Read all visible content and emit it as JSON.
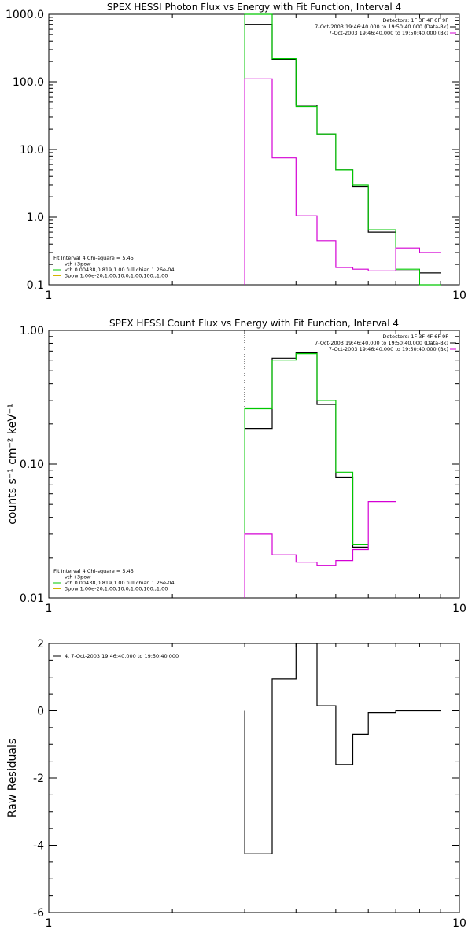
{
  "chart_data": [
    {
      "type": "line",
      "title": "SPEX HESSI Photon Flux vs Energy with Fit Function, Interval 4",
      "xscale": "log",
      "yscale": "log",
      "xlim": [
        1,
        10
      ],
      "ylim": [
        0.1,
        1000
      ],
      "xlabel": "",
      "ylabel": "",
      "x_ticks": [
        "1",
        "10"
      ],
      "y_ticks": [
        "0.1",
        "1.0",
        "10.0",
        "100.0",
        "1000.0"
      ],
      "y_tick_values": [
        0.1,
        1,
        10,
        100,
        1000
      ],
      "dotted_vline_x": 3,
      "info_lines": [
        "Detectors: 1F 3F 4F 6F 9F",
        "7-Oct-2003 19:46:40.000 to 19:50:40.000 (Data-Bk)",
        "7-Oct-2003 19:46:40.000 to 19:50:40.000 (Bk)"
      ],
      "info_line_colors": [
        "#000000",
        "#000000",
        "#d400d4"
      ],
      "legend_lines": [
        "Fit Interval  4    Chi-square = 5.45",
        "vth+3pow",
        "vth 0.00438,0.819,1.00   full chian 1.26e-04",
        "3pow 1.00e-20,1.00,10.0,1.00,100.,1.00"
      ],
      "legend_colors": [
        "#000000",
        "#d40000",
        "#00c800",
        "#d4b400"
      ],
      "bin_edges": [
        3.0,
        3.5,
        4.0,
        4.5,
        5.0,
        5.5,
        6.0,
        7.0,
        8.0,
        9.0,
        10.0
      ],
      "series": [
        {
          "name": "Data-Bk",
          "color": "#000000",
          "values": [
            700,
            215,
            45,
            17,
            5.0,
            2.8,
            0.6,
            0.16,
            0.15
          ]
        },
        {
          "name": "Fit",
          "color": "#00c800",
          "values": [
            1000,
            220,
            43,
            17,
            5.0,
            3.0,
            0.65,
            0.17,
            0.1
          ]
        },
        {
          "name": "Bk",
          "color": "#d400d4",
          "values": [
            110,
            7.5,
            1.05,
            0.45,
            0.18,
            0.17,
            0.16,
            0.35,
            0.3
          ]
        }
      ]
    },
    {
      "type": "line",
      "title": "SPEX HESSI Count Flux vs Energy with Fit Function, Interval 4",
      "xscale": "log",
      "yscale": "log",
      "xlim": [
        1,
        10
      ],
      "ylim": [
        0.01,
        1.0
      ],
      "xlabel": "",
      "ylabel": "counts s⁻¹ cm⁻² keV⁻¹",
      "x_ticks": [
        "1",
        "10"
      ],
      "y_ticks": [
        "0.01",
        "0.10",
        "1.00"
      ],
      "y_tick_values": [
        0.01,
        0.1,
        1.0
      ],
      "dotted_vline_x": 3,
      "info_lines": [
        "Detectors: 1F 3F 4F 6F 9F",
        "7-Oct-2003 19:46:40.000 to 19:50:40.000 (Data-Bk)",
        "7-Oct-2003 19:46:40.000 to 19:50:40.000 (Bk)"
      ],
      "info_line_colors": [
        "#000000",
        "#000000",
        "#d400d4"
      ],
      "legend_lines": [
        "Fit Interval  4    Chi-square = 5.45",
        "vth+3pow",
        "vth 0.00438,0.819,1.00   full chian 1.26e-04",
        "3pow 1.00e-20,1.00,10.0,1.00,100.,1.00"
      ],
      "legend_colors": [
        "#000000",
        "#d40000",
        "#00c800",
        "#d4b400"
      ],
      "bin_edges": [
        3.0,
        3.5,
        4.0,
        4.5,
        5.0,
        5.5,
        6.0,
        7.0,
        8.0,
        9.0,
        10.0
      ],
      "series": [
        {
          "name": "Data-Bk",
          "color": "#000000",
          "values": [
            0.185,
            0.62,
            0.68,
            0.28,
            0.08,
            0.024,
            0.0,
            0.0,
            0.0
          ]
        },
        {
          "name": "Fit",
          "color": "#00c800",
          "values": [
            0.26,
            0.6,
            0.67,
            0.3,
            0.087,
            0.025,
            0.0,
            0.0,
            0.0
          ]
        },
        {
          "name": "Bk",
          "color": "#d400d4",
          "values": [
            0.03,
            0.021,
            0.0185,
            0.0175,
            0.019,
            0.023,
            0.0525,
            0.0,
            0.0
          ]
        }
      ]
    },
    {
      "type": "line",
      "title": "",
      "xscale": "log",
      "yscale": "linear",
      "xlim": [
        1,
        10
      ],
      "ylim": [
        -6,
        2
      ],
      "xlabel": "",
      "ylabel": "Raw Residuals",
      "x_ticks": [
        "1",
        "10"
      ],
      "y_ticks": [
        "-6",
        "-4",
        "-2",
        "0",
        "2"
      ],
      "y_tick_values": [
        -6,
        -4,
        -2,
        0,
        2
      ],
      "legend_lines": [
        "4.  7-Oct-2003 19:46:40.000 to 19:50:40.000"
      ],
      "legend_colors": [
        "#000000"
      ],
      "bin_edges": [
        3.0,
        3.5,
        4.0,
        4.5,
        5.0,
        5.5,
        6.0,
        7.0,
        8.0,
        9.0,
        10.0
      ],
      "series": [
        {
          "name": "4.  7-Oct-2003 19:46:40.000 to 19:50:40.000",
          "color": "#000000",
          "values": [
            -4.25,
            0.95,
            2.0,
            0.15,
            -1.6,
            -0.7,
            -0.05,
            0.0,
            0.0
          ]
        }
      ]
    }
  ]
}
